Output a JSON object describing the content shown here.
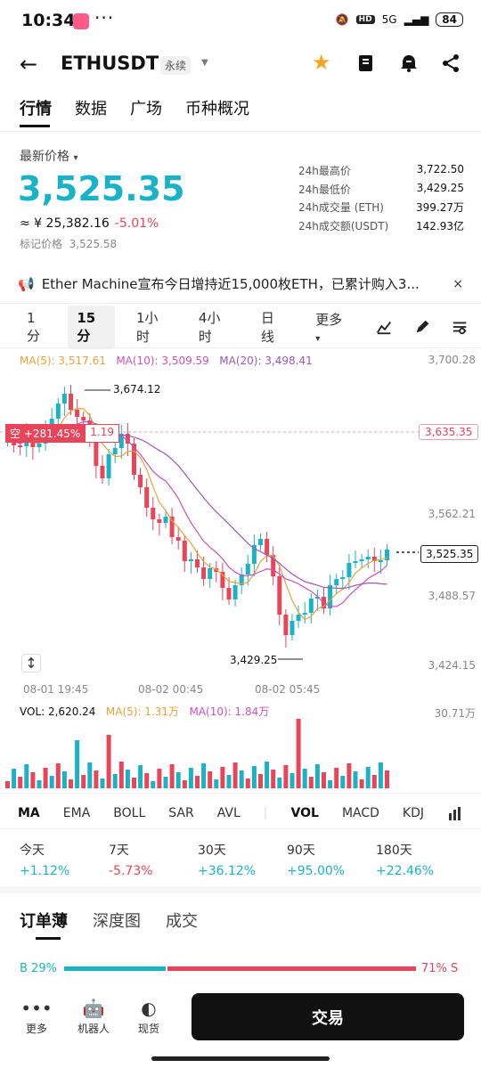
{
  "status_bar": {
    "time": "10:34",
    "dots": "···",
    "hd": "HD",
    "network": "5G",
    "battery": "84"
  },
  "header": {
    "symbol": "ETHUSDT",
    "perp_badge": "永续"
  },
  "tabs": [
    "行情",
    "数据",
    "广场",
    "币种概况"
  ],
  "price": {
    "label": "最新价格",
    "last": "3,525.35",
    "cny": "≈ ¥ 25,382.16",
    "change": "-5.01%",
    "mark_label": "标记价格",
    "mark_value": "3,525.58"
  },
  "stats": [
    {
      "k": "24h最高价",
      "v": "3,722.50"
    },
    {
      "k": "24h最低价",
      "v": "3,429.25"
    },
    {
      "k": "24h成交量 (ETH)",
      "v": "399.27万"
    },
    {
      "k": "24h成交额(USDT)",
      "v": "142.93亿"
    }
  ],
  "news": {
    "text": "Ether Machine宣布今日增持近15,000枚ETH，已累计购入3...",
    "close": "×"
  },
  "intervals": [
    "1分",
    "15分",
    "1小时",
    "4小时",
    "日线",
    "更多"
  ],
  "ma": {
    "ma5": "MA(5): 3,517.61",
    "ma10": "MA(10): 3,509.59",
    "ma20": "MA(20): 3,498.41"
  },
  "chart_labels": {
    "y_ticks": [
      "3,700.28",
      "3,562.21",
      "3,488.57",
      "3,424.15"
    ],
    "position_tag": "空 +281.45%",
    "leverage": "1.19",
    "position_price": "3,635.35",
    "last_price_tag": "3,525.35",
    "high_label": "3,674.12",
    "low_label": "3,429.25",
    "x_ticks": [
      "08-01 19:45",
      "08-02 00:45",
      "08-02 05:45"
    ]
  },
  "volume": {
    "vol": "VOL: 2,620.24",
    "ma5": "MA(5): 1.31万",
    "ma10": "MA(10): 1.84万",
    "y_max": "30.71万"
  },
  "indicators": [
    "MA",
    "EMA",
    "BOLL",
    "SAR",
    "AVL",
    "VOL",
    "MACD",
    "KDJ"
  ],
  "performance": [
    {
      "k": "今天",
      "v": "+1.12%"
    },
    {
      "k": "7天",
      "v": "-5.73%"
    },
    {
      "k": "30天",
      "v": "+36.12%"
    },
    {
      "k": "90天",
      "v": "+95.00%"
    },
    {
      "k": "180天",
      "v": "+22.46%"
    }
  ],
  "orderbook_tabs": [
    "订单薄",
    "深度图",
    "成交"
  ],
  "ratio": {
    "buy": "B 29%",
    "sell": "71% S",
    "buy_fraction": 0.29
  },
  "bottom_nav": [
    {
      "label": "更多",
      "icon": "more-icon"
    },
    {
      "label": "机器人",
      "icon": "robot-icon"
    },
    {
      "label": "现货",
      "icon": "spot-icon"
    }
  ],
  "trade_button": "交易",
  "colors": {
    "up": "#1ab3c6",
    "down": "#e8445a",
    "accent": "#f5a623"
  }
}
